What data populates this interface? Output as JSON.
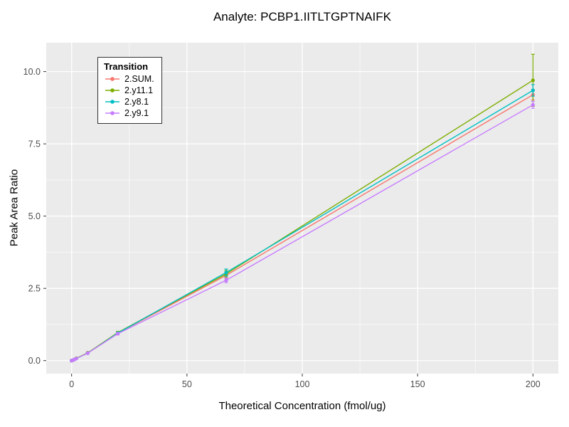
{
  "chart_data": {
    "type": "line",
    "title": "Analyte: PCBP1.IITLTGPTNAIFK",
    "xlabel": "Theoretical Concentration (fmol/ug)",
    "ylabel": "Peak Area Ratio",
    "legend_title": "Transition",
    "legend_position": "inside-top-left",
    "grid": true,
    "plot_bg": "#EBEBEB",
    "grid_color": "#FFFFFF",
    "xlim": [
      -11,
      211
    ],
    "ylim": [
      -0.45,
      11.0
    ],
    "x_major_ticks": [
      0,
      50,
      100,
      150,
      200
    ],
    "x_tick_labels": [
      "0",
      "50",
      "100",
      "150",
      "200"
    ],
    "x_minor_ticks": [
      25,
      75,
      125,
      175
    ],
    "y_major_ticks": [
      0.0,
      2.5,
      5.0,
      7.5,
      10.0
    ],
    "y_tick_labels": [
      "0.0",
      "2.5",
      "5.0",
      "7.5",
      "10.0"
    ],
    "y_minor_ticks": [
      1.25,
      3.75,
      6.25,
      8.75
    ],
    "x": [
      0,
      1,
      2,
      7,
      20,
      67,
      200
    ],
    "series": [
      {
        "name": "2.SUM.",
        "color": "#F8766D",
        "y": [
          0.0,
          0.03,
          0.07,
          0.27,
          0.95,
          2.95,
          9.2
        ],
        "yerr": [
          0,
          0,
          0,
          0.02,
          0.04,
          0.1,
          0.18
        ]
      },
      {
        "name": "2.y11.1",
        "color": "#7CAE00",
        "y": [
          0.0,
          0.03,
          0.08,
          0.27,
          0.97,
          3.0,
          9.7
        ],
        "yerr": [
          0,
          0,
          0,
          0.02,
          0.04,
          0.12,
          0.9
        ]
      },
      {
        "name": "2.y8.1",
        "color": "#00BFC4",
        "y": [
          0.0,
          0.03,
          0.07,
          0.26,
          0.95,
          3.05,
          9.35
        ],
        "yerr": [
          0,
          0,
          0,
          0.02,
          0.04,
          0.12,
          0.2
        ]
      },
      {
        "name": "2.y9.1",
        "color": "#C77CFF",
        "y": [
          0.0,
          0.03,
          0.07,
          0.26,
          0.93,
          2.78,
          8.85
        ],
        "yerr": [
          0,
          0,
          0,
          0.02,
          0.04,
          0.08,
          0.12
        ]
      }
    ]
  }
}
